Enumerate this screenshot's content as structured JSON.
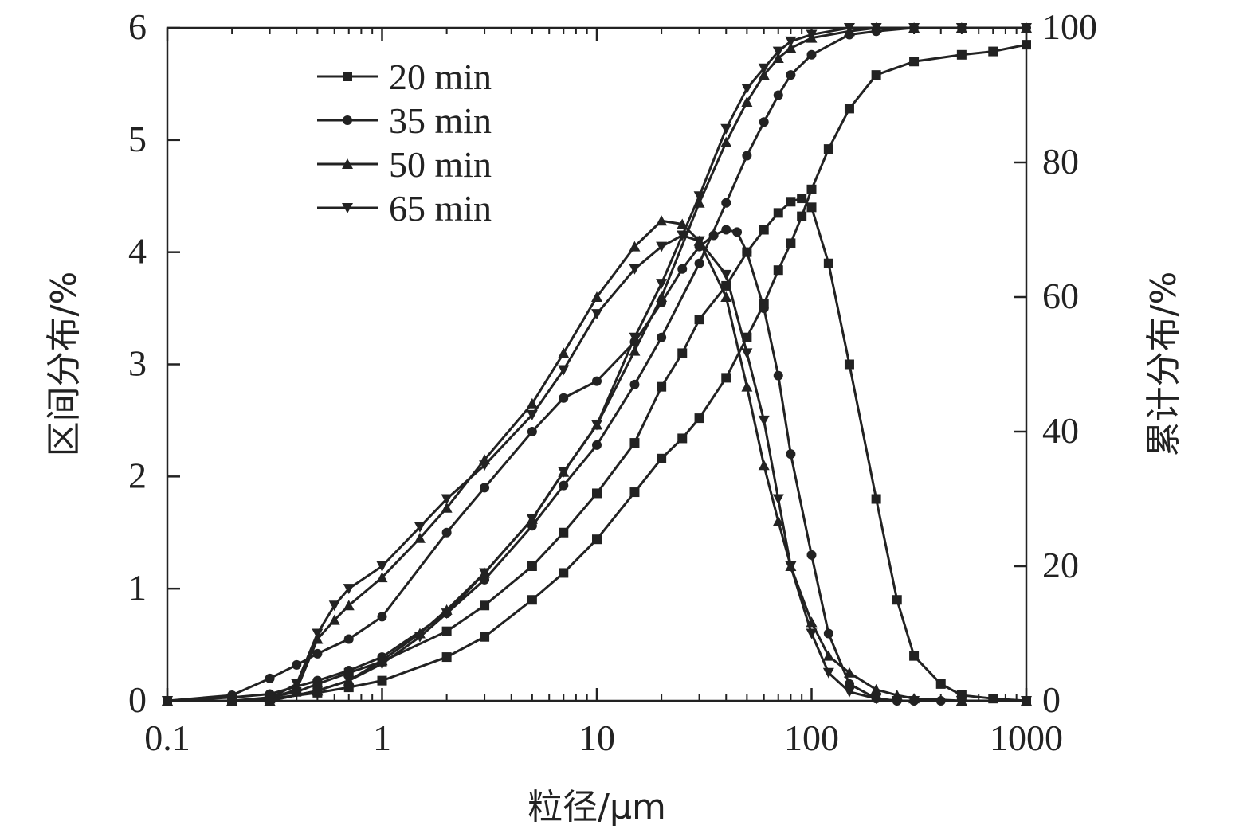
{
  "chart_data": {
    "type": "line",
    "xlabel": "粒径/μm",
    "ylabel_left": "区间分布/%",
    "ylabel_right": "累计分布/%",
    "x_scale": "log",
    "xlim": [
      0.1,
      1000
    ],
    "ylim_left": [
      0,
      6
    ],
    "ylim_right": [
      0,
      100
    ],
    "x_ticks": [
      0.1,
      1,
      10,
      100,
      1000
    ],
    "x_tick_labels": [
      "0.1",
      "1",
      "10",
      "100",
      "1000"
    ],
    "y_left_ticks": [
      0,
      1,
      2,
      3,
      4,
      5,
      6
    ],
    "y_left_tick_labels": [
      "0",
      "1",
      "2",
      "3",
      "4",
      "5",
      "6"
    ],
    "y_right_ticks": [
      0,
      20,
      40,
      60,
      80,
      100
    ],
    "y_right_tick_labels": [
      "0",
      "20",
      "40",
      "60",
      "80",
      "100"
    ],
    "grid": false,
    "legend_position": "top-left",
    "series": [
      {
        "name": "20 min",
        "marker": "square",
        "interval": {
          "x": [
            0.1,
            0.2,
            0.3,
            0.4,
            0.5,
            0.7,
            1,
            2,
            3,
            5,
            7,
            10,
            15,
            20,
            25,
            30,
            40,
            50,
            60,
            70,
            80,
            90,
            100,
            120,
            150,
            200,
            250,
            300,
            400,
            500,
            700,
            1000
          ],
          "y": [
            0,
            0,
            0.03,
            0.08,
            0.15,
            0.25,
            0.35,
            0.62,
            0.85,
            1.2,
            1.5,
            1.85,
            2.3,
            2.8,
            3.1,
            3.4,
            3.7,
            4.0,
            4.2,
            4.35,
            4.45,
            4.48,
            4.4,
            3.9,
            3.0,
            1.8,
            0.9,
            0.4,
            0.15,
            0.05,
            0.02,
            0
          ]
        },
        "cumulative": {
          "x": [
            0.1,
            0.2,
            0.3,
            0.5,
            0.7,
            1,
            2,
            3,
            5,
            7,
            10,
            15,
            20,
            25,
            30,
            40,
            50,
            60,
            70,
            80,
            90,
            100,
            120,
            150,
            200,
            300,
            500,
            700,
            1000
          ],
          "y": [
            0,
            0,
            0.3,
            1.2,
            2.0,
            3.0,
            6.5,
            9.5,
            15,
            19,
            24,
            31,
            36,
            39,
            42,
            48,
            54,
            59,
            64,
            68,
            72,
            76,
            82,
            88,
            93,
            95,
            96,
            96.5,
            97.5
          ]
        }
      },
      {
        "name": "35 min",
        "marker": "circle",
        "interval": {
          "x": [
            0.1,
            0.2,
            0.3,
            0.4,
            0.5,
            0.7,
            1,
            2,
            3,
            5,
            7,
            10,
            15,
            20,
            25,
            30,
            35,
            40,
            45,
            50,
            60,
            70,
            80,
            100,
            120,
            150,
            200,
            250,
            300,
            400,
            1000
          ],
          "y": [
            0,
            0.05,
            0.2,
            0.32,
            0.42,
            0.55,
            0.75,
            1.5,
            1.9,
            2.4,
            2.7,
            2.85,
            3.2,
            3.55,
            3.85,
            4.05,
            4.15,
            4.2,
            4.18,
            4.0,
            3.5,
            2.9,
            2.2,
            1.3,
            0.6,
            0.15,
            0.02,
            0,
            0,
            0,
            0
          ]
        },
        "cumulative": {
          "x": [
            0.1,
            0.2,
            0.3,
            0.5,
            0.7,
            1,
            2,
            3,
            5,
            7,
            10,
            15,
            20,
            30,
            40,
            50,
            60,
            70,
            80,
            100,
            150,
            200,
            300,
            500,
            1000
          ],
          "y": [
            0,
            0.5,
            1.0,
            3.0,
            4.5,
            6.5,
            13,
            18,
            26,
            32,
            38,
            47,
            54,
            65,
            74,
            81,
            86,
            90,
            93,
            96,
            99,
            99.5,
            100,
            100,
            100
          ]
        }
      },
      {
        "name": "50 min",
        "marker": "triangle-up",
        "interval": {
          "x": [
            0.1,
            0.2,
            0.3,
            0.4,
            0.5,
            0.6,
            0.7,
            1,
            1.5,
            2,
            3,
            5,
            7,
            10,
            15,
            20,
            25,
            30,
            40,
            50,
            60,
            70,
            80,
            100,
            120,
            150,
            200,
            250,
            300,
            500,
            1000
          ],
          "y": [
            0,
            0,
            0.02,
            0.1,
            0.55,
            0.72,
            0.85,
            1.1,
            1.45,
            1.72,
            2.15,
            2.65,
            3.1,
            3.6,
            4.05,
            4.28,
            4.25,
            4.1,
            3.6,
            2.8,
            2.1,
            1.6,
            1.2,
            0.7,
            0.4,
            0.25,
            0.1,
            0.05,
            0.02,
            0,
            0
          ]
        },
        "cumulative": {
          "x": [
            0.1,
            0.3,
            0.5,
            0.7,
            1,
            1.5,
            2,
            3,
            5,
            7,
            10,
            15,
            20,
            30,
            40,
            50,
            60,
            70,
            80,
            100,
            150,
            200,
            300,
            500,
            1000
          ],
          "y": [
            0,
            0,
            1.5,
            3,
            6,
            10,
            13.5,
            19,
            27,
            34,
            41,
            52,
            60,
            74,
            83,
            89,
            93,
            95.5,
            97,
            98.5,
            99.5,
            100,
            100,
            100,
            100
          ]
        }
      },
      {
        "name": "65 min",
        "marker": "triangle-down",
        "interval": {
          "x": [
            0.1,
            0.2,
            0.3,
            0.4,
            0.5,
            0.6,
            0.7,
            1,
            1.5,
            2,
            3,
            5,
            7,
            10,
            15,
            20,
            25,
            30,
            40,
            50,
            60,
            70,
            80,
            100,
            120,
            150,
            200,
            250,
            300,
            500,
            1000
          ],
          "y": [
            0,
            0,
            0.02,
            0.15,
            0.6,
            0.85,
            1.0,
            1.2,
            1.55,
            1.8,
            2.1,
            2.55,
            2.95,
            3.45,
            3.85,
            4.05,
            4.15,
            4.1,
            3.8,
            3.1,
            2.5,
            1.8,
            1.2,
            0.6,
            0.25,
            0.08,
            0.02,
            0,
            0,
            0,
            0
          ]
        },
        "cumulative": {
          "x": [
            0.1,
            0.3,
            0.5,
            0.7,
            1,
            1.5,
            2,
            3,
            5,
            7,
            10,
            15,
            20,
            30,
            40,
            50,
            60,
            70,
            80,
            100,
            150,
            200,
            300,
            500,
            1000
          ],
          "y": [
            0,
            0,
            1.5,
            3,
            5.5,
            9.5,
            13,
            19,
            27,
            34,
            41,
            54,
            62,
            75,
            85,
            91,
            94,
            96.5,
            98,
            99,
            100,
            100,
            100,
            100,
            100
          ]
        }
      }
    ]
  }
}
